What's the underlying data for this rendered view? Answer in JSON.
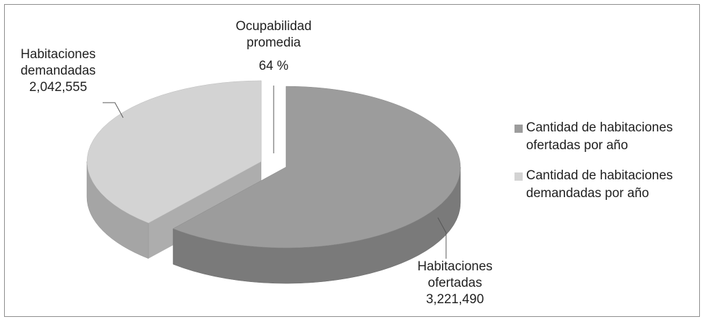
{
  "chart_data": {
    "type": "pie3d",
    "categories": [
      "Habitaciones ofertadas",
      "Habitaciones demandadas"
    ],
    "values": [
      3221490,
      2042555
    ],
    "value_labels": [
      "3,221,490",
      "2,042,555"
    ],
    "colors": [
      "#9c9c9c",
      "#d3d3d3"
    ],
    "legend": [
      "Cantidad de habitaciones ofertadas por año",
      "Cantidad de habitaciones demandadas por año"
    ],
    "legend_position": "right",
    "annotation": {
      "text": "Ocupabilidad promedia",
      "value_label": "64 %"
    }
  }
}
